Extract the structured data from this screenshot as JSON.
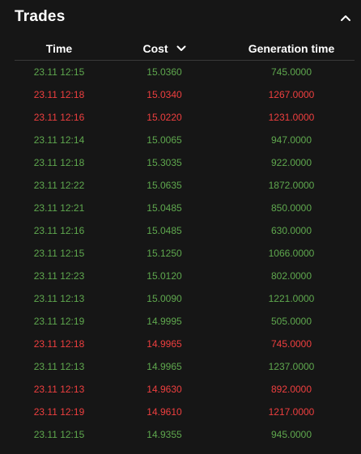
{
  "panel": {
    "title": "Trades"
  },
  "icons": {
    "collapse": "chevron-up-icon",
    "sort": "chevron-down-icon"
  },
  "colors": {
    "background": "#161616",
    "up": "#5fa84e",
    "down": "#ef3f3f",
    "header_text": "#ffffff",
    "divider": "#3a3a3a"
  },
  "table": {
    "columns": {
      "time": "Time",
      "cost": "Cost",
      "generation_time": "Generation time"
    },
    "sort_column": "Cost",
    "rows": [
      {
        "time": "23.11 12:15",
        "cost": "15.0360",
        "gen": "745.0000",
        "dir": "up"
      },
      {
        "time": "23.11 12:18",
        "cost": "15.0340",
        "gen": "1267.0000",
        "dir": "down"
      },
      {
        "time": "23.11 12:16",
        "cost": "15.0220",
        "gen": "1231.0000",
        "dir": "down"
      },
      {
        "time": "23.11 12:14",
        "cost": "15.0065",
        "gen": "947.0000",
        "dir": "up"
      },
      {
        "time": "23.11 12:18",
        "cost": "15.3035",
        "gen": "922.0000",
        "dir": "up"
      },
      {
        "time": "23.11 12:22",
        "cost": "15.0635",
        "gen": "1872.0000",
        "dir": "up"
      },
      {
        "time": "23.11 12:21",
        "cost": "15.0485",
        "gen": "850.0000",
        "dir": "up"
      },
      {
        "time": "23.11 12:16",
        "cost": "15.0485",
        "gen": "630.0000",
        "dir": "up"
      },
      {
        "time": "23.11 12:15",
        "cost": "15.1250",
        "gen": "1066.0000",
        "dir": "up"
      },
      {
        "time": "23.11 12:23",
        "cost": "15.0120",
        "gen": "802.0000",
        "dir": "up"
      },
      {
        "time": "23.11 12:13",
        "cost": "15.0090",
        "gen": "1221.0000",
        "dir": "up"
      },
      {
        "time": "23.11 12:19",
        "cost": "14.9995",
        "gen": "505.0000",
        "dir": "up"
      },
      {
        "time": "23.11 12:18",
        "cost": "14.9965",
        "gen": "745.0000",
        "dir": "down"
      },
      {
        "time": "23.11 12:13",
        "cost": "14.9965",
        "gen": "1237.0000",
        "dir": "up"
      },
      {
        "time": "23.11 12:13",
        "cost": "14.9630",
        "gen": "892.0000",
        "dir": "down"
      },
      {
        "time": "23.11 12:19",
        "cost": "14.9610",
        "gen": "1217.0000",
        "dir": "down"
      },
      {
        "time": "23.11 12:15",
        "cost": "14.9355",
        "gen": "945.0000",
        "dir": "up"
      }
    ]
  }
}
